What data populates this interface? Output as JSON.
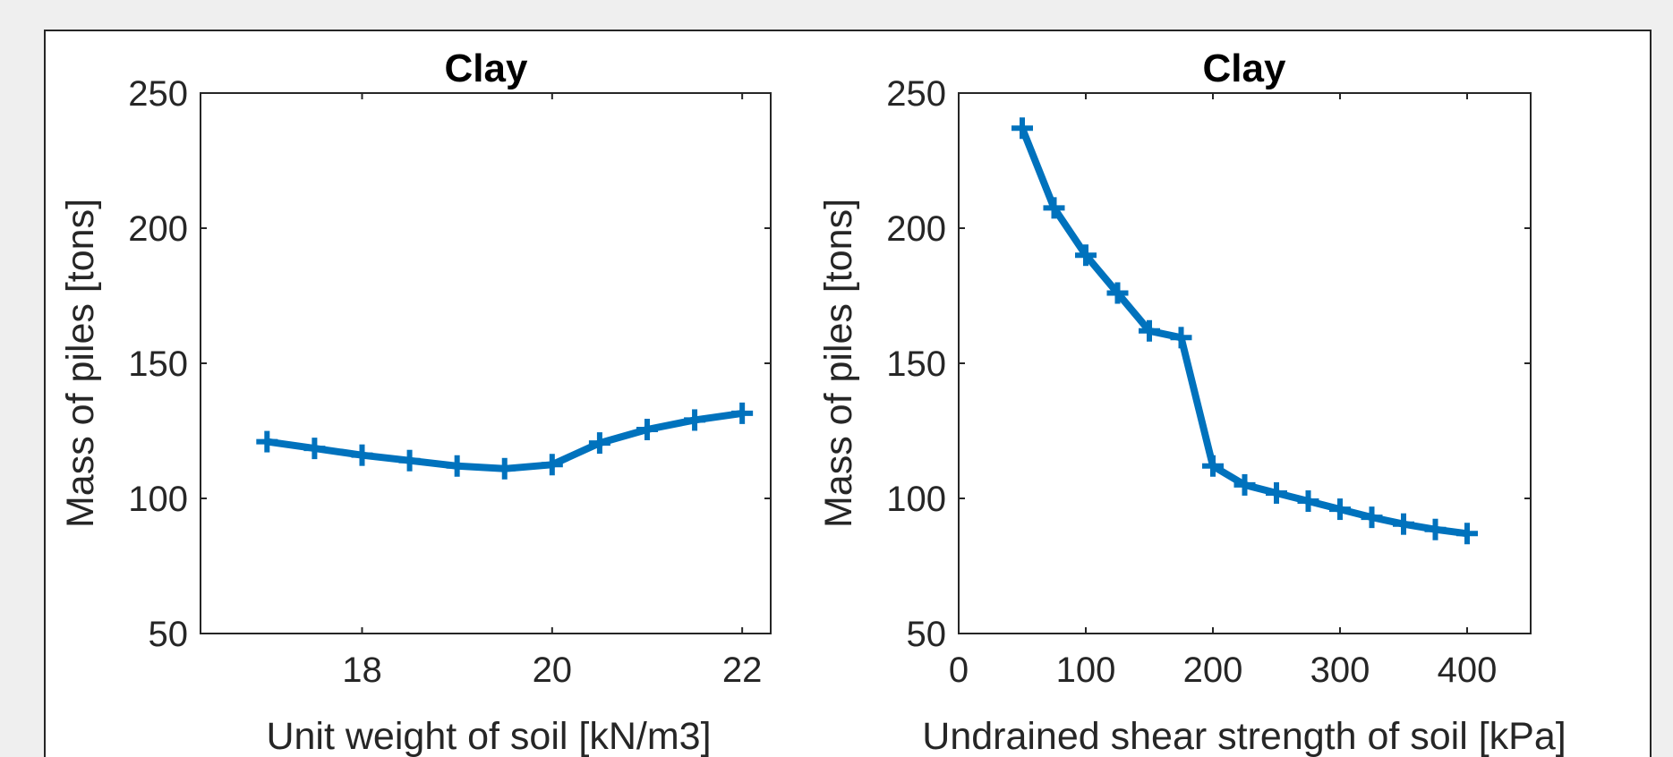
{
  "chart_data": [
    {
      "type": "line",
      "title": "Clay",
      "xlabel": "Unit weight of soil [kN/m3]",
      "ylabel": "Mass of piles [tons]",
      "xlim": [
        16.3,
        22.3
      ],
      "ylim": [
        50,
        250
      ],
      "xticks": [
        18,
        20,
        22
      ],
      "yticks": [
        50,
        100,
        150,
        200,
        250
      ],
      "grid": false,
      "marker": "plus",
      "color": "#0072BD",
      "x": [
        17,
        17.5,
        18,
        18.5,
        19,
        19.5,
        20,
        20.5,
        21,
        21.5,
        22
      ],
      "y": [
        121,
        118.5,
        116,
        114,
        112,
        111,
        112.5,
        120.5,
        125.5,
        129,
        131.5
      ]
    },
    {
      "type": "line",
      "title": "Clay",
      "xlabel": "Undrained shear strength of soil [kPa]",
      "ylabel": "Mass of piles [tons]",
      "xlim": [
        0,
        450
      ],
      "ylim": [
        50,
        250
      ],
      "xticks": [
        0,
        100,
        200,
        300,
        400
      ],
      "yticks": [
        50,
        100,
        150,
        200,
        250
      ],
      "grid": false,
      "marker": "plus",
      "color": "#0072BD",
      "x": [
        50,
        75,
        100,
        125,
        150,
        175,
        200,
        225,
        250,
        275,
        300,
        325,
        350,
        375,
        400
      ],
      "y": [
        237,
        207.5,
        190,
        176,
        162,
        159.5,
        112,
        105,
        102,
        99,
        96,
        93,
        90.5,
        88.5,
        87
      ]
    }
  ]
}
